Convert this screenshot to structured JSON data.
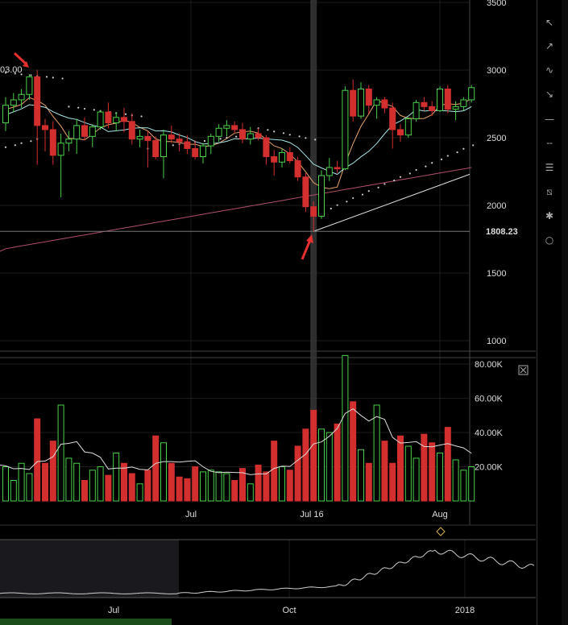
{
  "chart_data": {
    "type": "candlestick",
    "title": "",
    "price_axis": {
      "ticks": [
        "3500",
        "3000",
        "2500",
        "2000",
        "1500",
        "1000"
      ],
      "range": [
        950,
        3550
      ]
    },
    "volume_axis": {
      "ticks": [
        "80.00K",
        "60.00K",
        "40.00K",
        "20.00K"
      ],
      "range": [
        0,
        85000
      ]
    },
    "x_ticks": [
      "Jul",
      "Jul 16",
      "Aug"
    ],
    "nav_x_ticks": [
      "Jul",
      "Oct",
      "2018"
    ],
    "price_label": "1808.23",
    "left_label": "03.00",
    "candles": [
      {
        "o": 2610,
        "h": 2800,
        "l": 2550,
        "c": 2740
      },
      {
        "o": 2740,
        "h": 2830,
        "l": 2690,
        "c": 2780
      },
      {
        "o": 2780,
        "h": 2860,
        "l": 2720,
        "c": 2820
      },
      {
        "o": 2820,
        "h": 2970,
        "l": 2780,
        "c": 2950
      },
      {
        "o": 2950,
        "h": 3000,
        "l": 2300,
        "c": 2590
      },
      {
        "o": 2590,
        "h": 2640,
        "l": 2400,
        "c": 2560
      },
      {
        "o": 2560,
        "h": 2620,
        "l": 2300,
        "c": 2370
      },
      {
        "o": 2370,
        "h": 2530,
        "l": 2060,
        "c": 2460
      },
      {
        "o": 2460,
        "h": 2550,
        "l": 2400,
        "c": 2490
      },
      {
        "o": 2490,
        "h": 2640,
        "l": 2380,
        "c": 2590
      },
      {
        "o": 2590,
        "h": 2650,
        "l": 2480,
        "c": 2510
      },
      {
        "o": 2510,
        "h": 2600,
        "l": 2430,
        "c": 2580
      },
      {
        "o": 2580,
        "h": 2700,
        "l": 2560,
        "c": 2690
      },
      {
        "o": 2690,
        "h": 2760,
        "l": 2570,
        "c": 2610
      },
      {
        "o": 2610,
        "h": 2690,
        "l": 2550,
        "c": 2650
      },
      {
        "o": 2650,
        "h": 2720,
        "l": 2540,
        "c": 2620
      },
      {
        "o": 2620,
        "h": 2680,
        "l": 2450,
        "c": 2490
      },
      {
        "o": 2490,
        "h": 2560,
        "l": 2430,
        "c": 2510
      },
      {
        "o": 2510,
        "h": 2550,
        "l": 2280,
        "c": 2480
      },
      {
        "o": 2480,
        "h": 2510,
        "l": 2340,
        "c": 2360
      },
      {
        "o": 2360,
        "h": 2560,
        "l": 2200,
        "c": 2520
      },
      {
        "o": 2520,
        "h": 2590,
        "l": 2460,
        "c": 2490
      },
      {
        "o": 2490,
        "h": 2530,
        "l": 2400,
        "c": 2470
      },
      {
        "o": 2470,
        "h": 2520,
        "l": 2380,
        "c": 2420
      },
      {
        "o": 2420,
        "h": 2480,
        "l": 2340,
        "c": 2360
      },
      {
        "o": 2360,
        "h": 2460,
        "l": 2310,
        "c": 2440
      },
      {
        "o": 2440,
        "h": 2530,
        "l": 2380,
        "c": 2510
      },
      {
        "o": 2510,
        "h": 2600,
        "l": 2470,
        "c": 2570
      },
      {
        "o": 2570,
        "h": 2630,
        "l": 2510,
        "c": 2590
      },
      {
        "o": 2590,
        "h": 2620,
        "l": 2530,
        "c": 2560
      },
      {
        "o": 2560,
        "h": 2610,
        "l": 2460,
        "c": 2490
      },
      {
        "o": 2490,
        "h": 2580,
        "l": 2450,
        "c": 2530
      },
      {
        "o": 2530,
        "h": 2570,
        "l": 2480,
        "c": 2500
      },
      {
        "o": 2500,
        "h": 2520,
        "l": 2300,
        "c": 2360
      },
      {
        "o": 2360,
        "h": 2410,
        "l": 2220,
        "c": 2320
      },
      {
        "o": 2320,
        "h": 2420,
        "l": 2280,
        "c": 2390
      },
      {
        "o": 2390,
        "h": 2430,
        "l": 2310,
        "c": 2330
      },
      {
        "o": 2330,
        "h": 2360,
        "l": 2180,
        "c": 2210
      },
      {
        "o": 2210,
        "h": 2240,
        "l": 1950,
        "c": 1990
      },
      {
        "o": 1990,
        "h": 2030,
        "l": 1808,
        "c": 1920
      },
      {
        "o": 1920,
        "h": 2260,
        "l": 1900,
        "c": 2220
      },
      {
        "o": 2220,
        "h": 2350,
        "l": 2180,
        "c": 2280
      },
      {
        "o": 2280,
        "h": 2330,
        "l": 2240,
        "c": 2270
      },
      {
        "o": 2270,
        "h": 2880,
        "l": 2260,
        "c": 2850
      },
      {
        "o": 2850,
        "h": 2930,
        "l": 2620,
        "c": 2660
      },
      {
        "o": 2660,
        "h": 2910,
        "l": 2640,
        "c": 2860
      },
      {
        "o": 2860,
        "h": 2890,
        "l": 2680,
        "c": 2740
      },
      {
        "o": 2740,
        "h": 2800,
        "l": 2640,
        "c": 2780
      },
      {
        "o": 2780,
        "h": 2800,
        "l": 2680,
        "c": 2720
      },
      {
        "o": 2720,
        "h": 2760,
        "l": 2420,
        "c": 2560
      },
      {
        "o": 2560,
        "h": 2600,
        "l": 2470,
        "c": 2520
      },
      {
        "o": 2520,
        "h": 2650,
        "l": 2500,
        "c": 2640
      },
      {
        "o": 2640,
        "h": 2780,
        "l": 2620,
        "c": 2760
      },
      {
        "o": 2760,
        "h": 2800,
        "l": 2700,
        "c": 2730
      },
      {
        "o": 2730,
        "h": 2770,
        "l": 2660,
        "c": 2700
      },
      {
        "o": 2700,
        "h": 2880,
        "l": 2690,
        "c": 2860
      },
      {
        "o": 2860,
        "h": 2890,
        "l": 2680,
        "c": 2710
      },
      {
        "o": 2710,
        "h": 2770,
        "l": 2630,
        "c": 2730
      },
      {
        "o": 2730,
        "h": 2800,
        "l": 2700,
        "c": 2780
      },
      {
        "o": 2780,
        "h": 2890,
        "l": 2760,
        "c": 2870
      }
    ],
    "volumes": [
      20000,
      12000,
      22000,
      16000,
      48000,
      22000,
      35000,
      56000,
      25000,
      22000,
      12000,
      18000,
      20000,
      15000,
      28000,
      22000,
      16000,
      10000,
      18000,
      38000,
      34000,
      22000,
      14000,
      13000,
      20000,
      17000,
      18000,
      17000,
      16000,
      12000,
      19000,
      10000,
      21000,
      17000,
      35000,
      20000,
      18000,
      32000,
      42000,
      53000,
      42000,
      40000,
      45000,
      85000,
      58000,
      30000,
      22000,
      56000,
      35000,
      22000,
      38000,
      32000,
      25000,
      39000,
      34000,
      28000,
      43000,
      24000,
      18000,
      20000
    ]
  },
  "toolbar": {
    "icons": [
      "cursor-icon",
      "arrow-up-icon",
      "wave-icon",
      "arrow-down-icon",
      "horizontal-line-icon",
      "ray-icon",
      "fib-icon",
      "pitchfork-icon",
      "fan-icon",
      "circle-icon",
      "rectangle-icon"
    ],
    "glyphs": [
      "↖",
      "↗",
      "∿",
      "↘",
      "—",
      "╌",
      "☰",
      "⧅",
      "✱",
      "○",
      "□"
    ]
  },
  "colors": {
    "up": "#4ad14a",
    "down": "#d32f2f",
    "ma_orange": "#e8a36b",
    "ma_cyan": "#a8e6e6",
    "ma_pink": "#b0506a",
    "dots": "#cccccc",
    "annotation": "#e53030",
    "highlight": "#3a3a3a"
  }
}
